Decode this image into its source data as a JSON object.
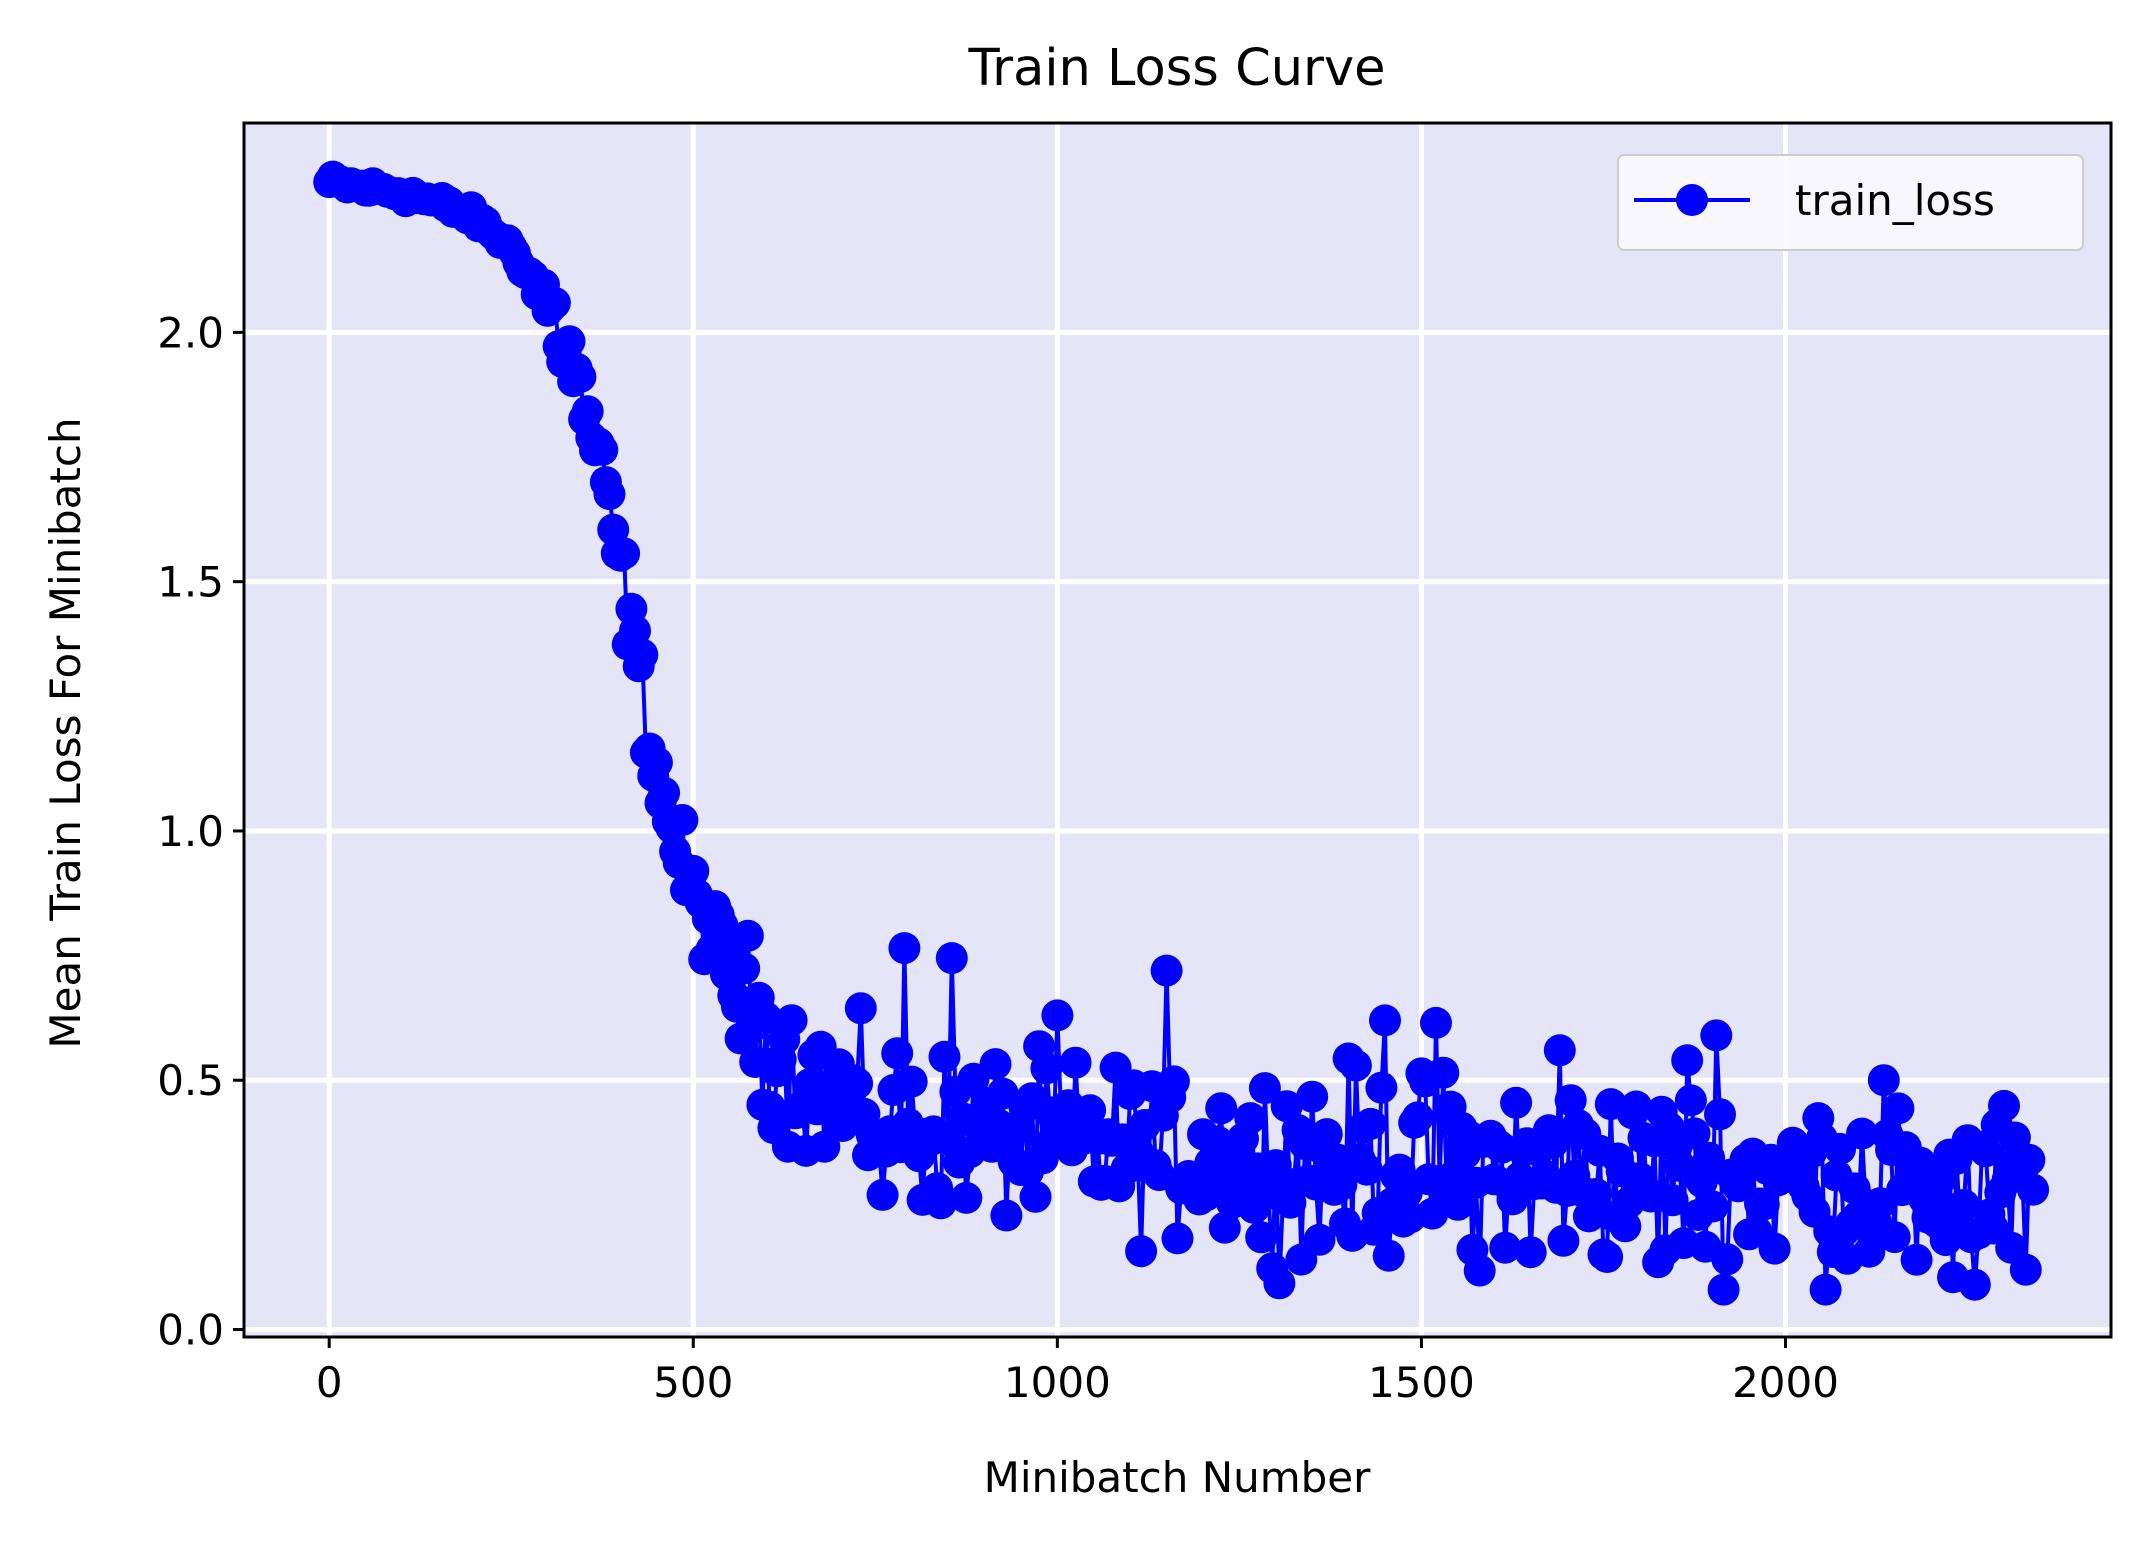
{
  "colors": {
    "plot_background": "#e5e5f8",
    "grid": "#ffffff",
    "series": "#0000ff",
    "axis": "#000000"
  },
  "chart_data": {
    "type": "line",
    "title": "Train Loss Curve",
    "xlabel": "Minibatch Number",
    "ylabel": "Mean Train Loss For Minibatch",
    "xlim": [
      -117,
      2447
    ],
    "ylim": [
      -0.015,
      2.42
    ],
    "xticks": [
      0,
      500,
      1000,
      1500,
      2000
    ],
    "xtick_labels": [
      "0",
      "500",
      "1000",
      "1500",
      "2000"
    ],
    "yticks": [
      0.0,
      0.5,
      1.0,
      1.5,
      2.0
    ],
    "ytick_labels": [
      "0.0",
      "0.5",
      "1.0",
      "1.5",
      "2.0"
    ],
    "grid": true,
    "legend_position": "top-right",
    "marker": "circle",
    "series": [
      {
        "name": "train_loss",
        "color": "#0000ff",
        "x_start": 0,
        "x_step": 5,
        "trend": [
          [
            0,
            2.3
          ],
          [
            50,
            2.29
          ],
          [
            100,
            2.28
          ],
          [
            150,
            2.26
          ],
          [
            200,
            2.23
          ],
          [
            250,
            2.17
          ],
          [
            300,
            2.06
          ],
          [
            330,
            1.95
          ],
          [
            350,
            1.85
          ],
          [
            370,
            1.74
          ],
          [
            390,
            1.6
          ],
          [
            410,
            1.45
          ],
          [
            430,
            1.28
          ],
          [
            450,
            1.12
          ],
          [
            470,
            1.0
          ],
          [
            500,
            0.87
          ],
          [
            530,
            0.78
          ],
          [
            560,
            0.68
          ],
          [
            600,
            0.58
          ],
          [
            650,
            0.5
          ],
          [
            700,
            0.46
          ],
          [
            800,
            0.41
          ],
          [
            900,
            0.39
          ],
          [
            1000,
            0.37
          ],
          [
            1100,
            0.36
          ],
          [
            1300,
            0.345
          ],
          [
            1500,
            0.33
          ],
          [
            1700,
            0.315
          ],
          [
            1900,
            0.3
          ],
          [
            2100,
            0.29
          ],
          [
            2200,
            0.285
          ],
          [
            2340,
            0.28
          ]
        ],
        "highlighted_points": [
          [
            790,
            0.765
          ],
          [
            855,
            0.745
          ],
          [
            1150,
            0.72
          ],
          [
            1000,
            0.63
          ],
          [
            1360,
            0.61
          ],
          [
            1450,
            0.62
          ],
          [
            1520,
            0.615
          ],
          [
            1905,
            0.59
          ],
          [
            1690,
            0.56
          ],
          [
            1865,
            0.54
          ],
          [
            2135,
            0.5
          ],
          [
            2330,
            0.485
          ],
          [
            760,
            0.27
          ],
          [
            815,
            0.26
          ],
          [
            1570,
            0.16
          ],
          [
            1650,
            0.155
          ],
          [
            1825,
            0.135
          ],
          [
            2180,
            0.14
          ],
          [
            2230,
            0.105
          ],
          [
            2260,
            0.09
          ],
          [
            2330,
            0.12
          ],
          [
            2345,
            0.115
          ],
          [
            1360,
            0.18
          ],
          [
            1280,
            0.185
          ]
        ]
      }
    ]
  }
}
